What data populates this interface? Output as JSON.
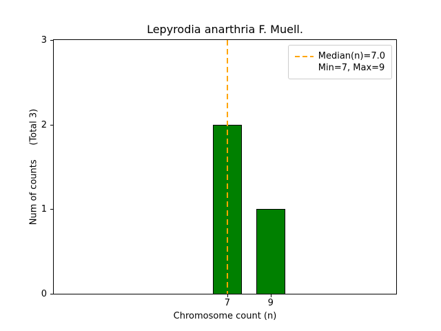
{
  "chart_data": {
    "type": "bar",
    "title": "Lepyrodia anarthria F. Muell.",
    "xlabel": "Chromosome count (n)",
    "ylabel": "Num of counts     (Total 3)",
    "categories": [
      7,
      9
    ],
    "values": [
      2,
      1
    ],
    "total_counts": 3,
    "bar_width": 1.33,
    "bar_color": "#008000",
    "bar_edge_color": "#000000",
    "xlim": [
      -1.03,
      14.81
    ],
    "ylim": [
      0,
      3
    ],
    "xticks": [
      7,
      9
    ],
    "yticks": [
      0,
      1,
      2,
      3
    ],
    "grid": false,
    "median_line": {
      "x": 7.0,
      "color": "#FFA500",
      "style": "dashed",
      "label": "Median(n)=7.0"
    },
    "legend_position": "upper right",
    "legend_entries": [
      {
        "sample": "dashed-line",
        "label": "Median(n)=7.0"
      },
      {
        "sample": "none",
        "label": "Min=7, Max=9"
      }
    ]
  }
}
